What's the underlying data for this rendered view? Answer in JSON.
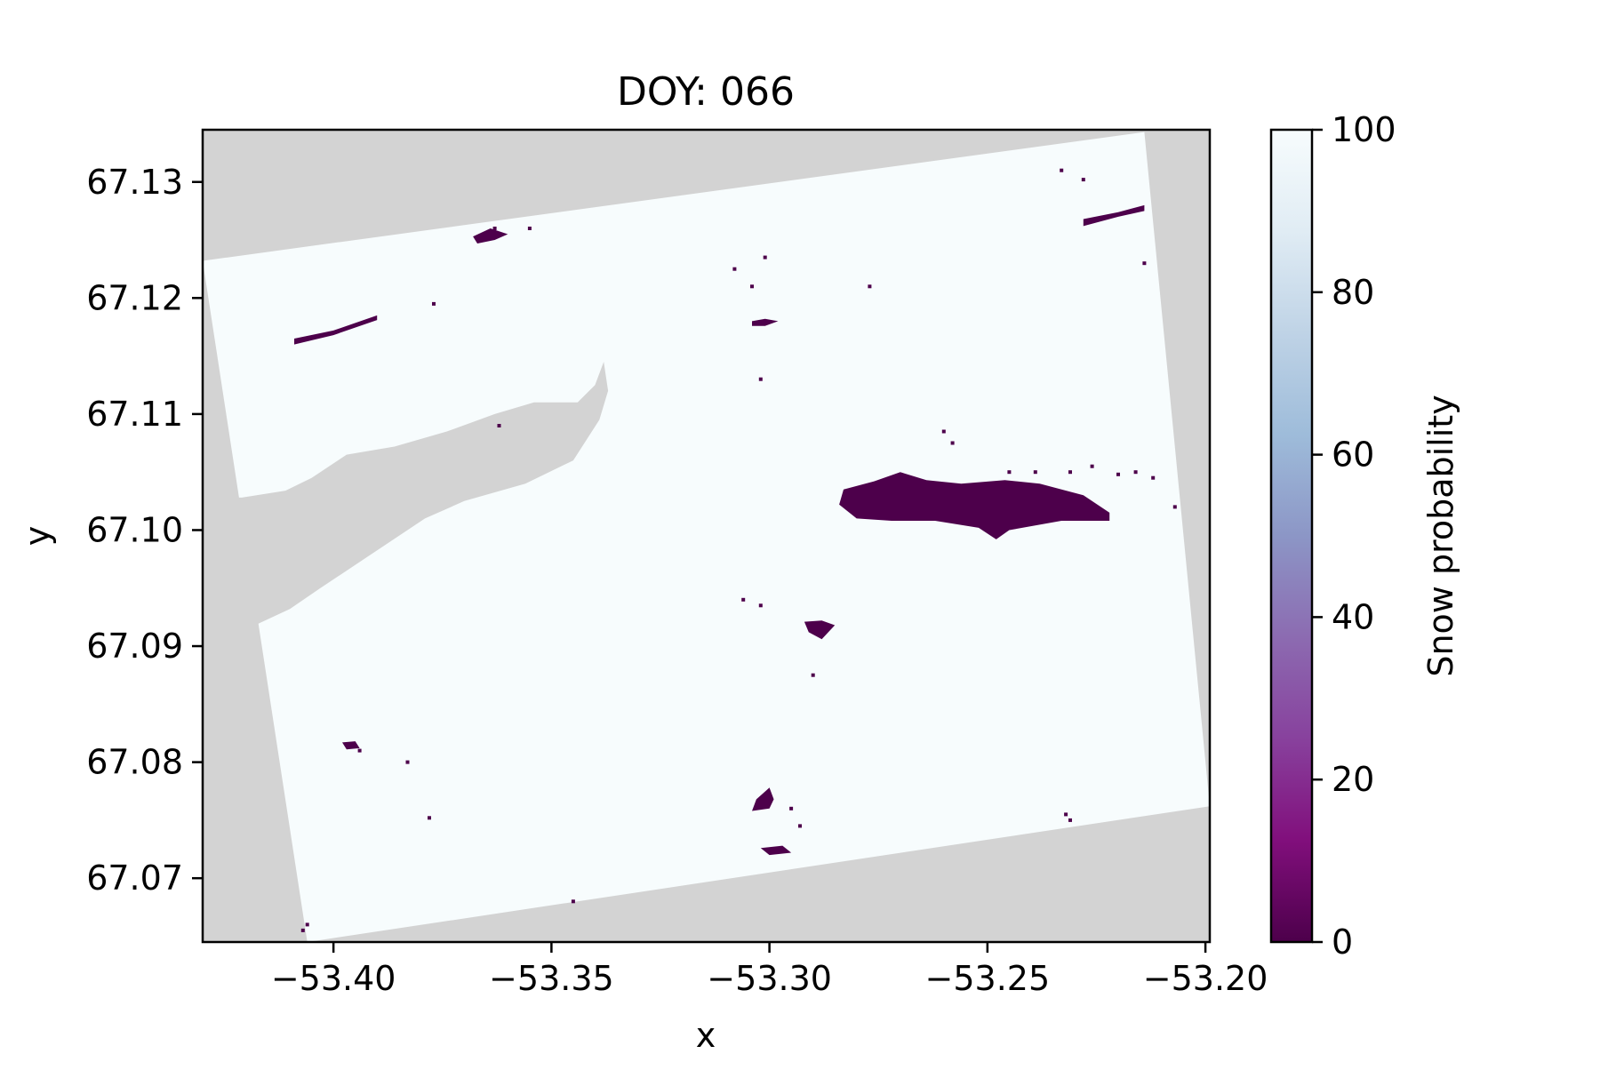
{
  "chart_data": {
    "type": "heatmap",
    "title": "DOY: 066",
    "xlabel": "x",
    "ylabel": "y",
    "xlim": [
      -53.43,
      -53.199
    ],
    "ylim": [
      67.0645,
      67.1345
    ],
    "x_ticks": [
      -53.4,
      -53.35,
      -53.3,
      -53.25,
      -53.2
    ],
    "x_tick_labels": [
      "−53.40",
      "−53.35",
      "−53.30",
      "−53.25",
      "−53.20"
    ],
    "y_ticks": [
      67.07,
      67.08,
      67.09,
      67.1,
      67.11,
      67.12,
      67.13
    ],
    "y_tick_labels": [
      "67.07",
      "67.08",
      "67.09",
      "67.10",
      "67.11",
      "67.12",
      "67.13"
    ],
    "colorbar": {
      "label": "Snow probability",
      "range": [
        0,
        100
      ],
      "ticks": [
        0,
        20,
        40,
        60,
        80,
        100
      ],
      "tick_labels": [
        "0",
        "20",
        "40",
        "60",
        "80",
        "100"
      ],
      "colormap": "BuPu_r",
      "colors": [
        "#4d004b",
        "#810f7c",
        "#88419d",
        "#8c6bb1",
        "#8c96c6",
        "#9ebcda",
        "#bfd3e6",
        "#e0ecf4",
        "#f7fcfd"
      ]
    },
    "nodata_color": "#d3d3d3",
    "background_value": 100,
    "grid": false,
    "scene_footprint": {
      "corners": [
        [
          -53.43,
          67.1232
        ],
        [
          -53.214,
          67.1343
        ],
        [
          -53.199,
          67.0762
        ],
        [
          -53.406,
          67.0645
        ]
      ]
    },
    "water_body": {
      "outline": [
        [
          -53.421,
          67.1028
        ],
        [
          -53.411,
          67.1034
        ],
        [
          -53.405,
          67.1045
        ],
        [
          -53.397,
          67.1065
        ],
        [
          -53.386,
          67.1072
        ],
        [
          -53.374,
          67.1085
        ],
        [
          -53.363,
          67.11
        ],
        [
          -53.354,
          67.111
        ],
        [
          -53.344,
          67.111
        ],
        [
          -53.34,
          67.1125
        ],
        [
          -53.338,
          67.1145
        ],
        [
          -53.337,
          67.112
        ],
        [
          -53.339,
          67.1095
        ],
        [
          -53.345,
          67.106
        ],
        [
          -53.356,
          67.104
        ],
        [
          -53.37,
          67.1025
        ],
        [
          -53.379,
          67.101
        ],
        [
          -53.387,
          67.099
        ],
        [
          -53.395,
          67.097
        ],
        [
          -53.403,
          67.095
        ],
        [
          -53.41,
          67.0932
        ],
        [
          -53.418,
          67.0918
        ],
        [
          -53.43,
          67.0905
        ],
        [
          -53.43,
          67.1028
        ]
      ]
    },
    "low_probability_patches": [
      {
        "value": 0,
        "outline": [
          [
            -53.283,
            67.1035
          ],
          [
            -53.276,
            67.1042
          ],
          [
            -53.27,
            67.105
          ],
          [
            -53.264,
            67.1043
          ],
          [
            -53.256,
            67.104
          ],
          [
            -53.246,
            67.1043
          ],
          [
            -53.238,
            67.104
          ],
          [
            -53.228,
            67.103
          ],
          [
            -53.222,
            67.1015
          ],
          [
            -53.222,
            67.1008
          ],
          [
            -53.233,
            67.1008
          ],
          [
            -53.245,
            67.1
          ],
          [
            -53.248,
            67.0992
          ],
          [
            -53.252,
            67.1002
          ],
          [
            -53.262,
            67.1008
          ],
          [
            -53.272,
            67.1008
          ],
          [
            -53.28,
            67.101
          ],
          [
            -53.284,
            67.1022
          ]
        ]
      },
      {
        "value": 0,
        "outline": [
          [
            -53.292,
            67.0921
          ],
          [
            -53.288,
            67.0922
          ],
          [
            -53.285,
            67.0918
          ],
          [
            -53.287,
            67.091
          ],
          [
            -53.288,
            67.0906
          ],
          [
            -53.291,
            67.0912
          ]
        ]
      },
      {
        "value": 0,
        "outline": [
          [
            -53.303,
            67.0768
          ],
          [
            -53.3,
            67.0778
          ],
          [
            -53.299,
            67.0768
          ],
          [
            -53.3,
            67.076
          ],
          [
            -53.304,
            67.0758
          ]
        ]
      },
      {
        "value": 0,
        "outline": [
          [
            -53.302,
            67.0726
          ],
          [
            -53.297,
            67.0728
          ],
          [
            -53.295,
            67.0722
          ],
          [
            -53.3,
            67.072
          ]
        ]
      },
      {
        "value": 0,
        "outline": [
          [
            -53.368,
            67.1253
          ],
          [
            -53.364,
            67.126
          ],
          [
            -53.36,
            67.1255
          ],
          [
            -53.363,
            67.125
          ],
          [
            -53.367,
            67.1247
          ]
        ]
      },
      {
        "value": 0,
        "outline": [
          [
            -53.409,
            67.1165
          ],
          [
            -53.4,
            67.1172
          ],
          [
            -53.39,
            67.1185
          ],
          [
            -53.39,
            67.1181
          ],
          [
            -53.4,
            67.1168
          ],
          [
            -53.409,
            67.116
          ]
        ]
      },
      {
        "value": 0,
        "outline": [
          [
            -53.304,
            67.118
          ],
          [
            -53.301,
            67.1182
          ],
          [
            -53.298,
            67.118
          ],
          [
            -53.301,
            67.1176
          ],
          [
            -53.304,
            67.1176
          ]
        ]
      },
      {
        "value": 0,
        "outline": [
          [
            -53.228,
            67.1268
          ],
          [
            -53.22,
            67.1274
          ],
          [
            -53.214,
            67.128
          ],
          [
            -53.214,
            67.1275
          ],
          [
            -53.22,
            67.127
          ],
          [
            -53.228,
            67.1262
          ]
        ]
      },
      {
        "value": 0,
        "outline": [
          [
            -53.398,
            67.0817
          ],
          [
            -53.395,
            67.0818
          ],
          [
            -53.394,
            67.0812
          ],
          [
            -53.397,
            67.0811
          ]
        ]
      }
    ],
    "low_probability_specks": [
      [
        -53.233,
        67.131
      ],
      [
        -53.228,
        67.1302
      ],
      [
        -53.308,
        67.1225
      ],
      [
        -53.301,
        67.1235
      ],
      [
        -53.304,
        67.121
      ],
      [
        -53.277,
        67.121
      ],
      [
        -53.377,
        67.1195
      ],
      [
        -53.363,
        67.126
      ],
      [
        -53.355,
        67.126
      ],
      [
        -53.302,
        67.113
      ],
      [
        -53.362,
        67.109
      ],
      [
        -53.26,
        67.1085
      ],
      [
        -53.258,
        67.1075
      ],
      [
        -53.245,
        67.105
      ],
      [
        -53.239,
        67.105
      ],
      [
        -53.231,
        67.105
      ],
      [
        -53.226,
        67.1055
      ],
      [
        -53.22,
        67.1048
      ],
      [
        -53.216,
        67.105
      ],
      [
        -53.212,
        67.1045
      ],
      [
        -53.207,
        67.102
      ],
      [
        -53.214,
        67.123
      ],
      [
        -53.306,
        67.094
      ],
      [
        -53.302,
        67.0935
      ],
      [
        -53.29,
        67.0875
      ],
      [
        -53.394,
        67.081
      ],
      [
        -53.383,
        67.08
      ],
      [
        -53.378,
        67.0752
      ],
      [
        -53.295,
        67.076
      ],
      [
        -53.293,
        67.0745
      ],
      [
        -53.232,
        67.0755
      ],
      [
        -53.231,
        67.075
      ],
      [
        -53.345,
        67.068
      ],
      [
        -53.407,
        67.0655
      ],
      [
        -53.406,
        67.066
      ]
    ]
  }
}
